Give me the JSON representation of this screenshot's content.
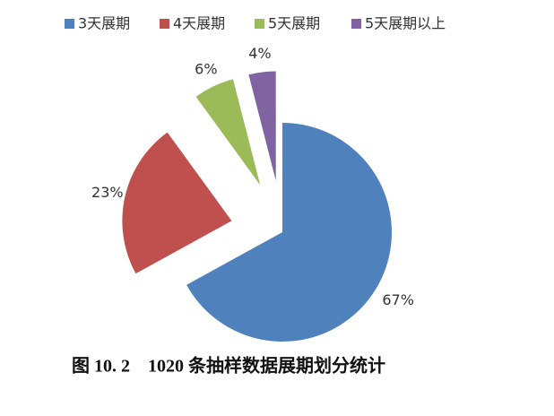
{
  "chart_data": {
    "type": "pie",
    "title": "图 10. 2　1020 条抽样数据展期划分统计",
    "categories": [
      "3天展期",
      "4天展期",
      "5天展期",
      "5天展期以上"
    ],
    "values": [
      67,
      23,
      6,
      4
    ],
    "value_labels": [
      "67%",
      "23%",
      "6%",
      "4%"
    ],
    "colors": [
      "#4f81bd",
      "#c0504d",
      "#9bbb59",
      "#8064a2"
    ],
    "legend": "top"
  }
}
